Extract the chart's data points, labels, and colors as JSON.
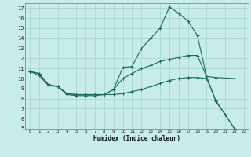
{
  "xlabel": "Humidex (Indice chaleur)",
  "bg_color": "#c8ece9",
  "grid_color": "#a8d8d4",
  "line_color": "#1a6b5a",
  "xlim": [
    -0.5,
    23.5
  ],
  "ylim": [
    5,
    17.5
  ],
  "yticks": [
    5,
    6,
    7,
    8,
    9,
    10,
    11,
    12,
    13,
    14,
    15,
    16,
    17
  ],
  "xticks": [
    0,
    1,
    2,
    3,
    4,
    5,
    6,
    7,
    8,
    9,
    10,
    11,
    12,
    13,
    14,
    15,
    16,
    17,
    18,
    19,
    20,
    21,
    22,
    23
  ],
  "series": [
    {
      "x": [
        0,
        1,
        2,
        3,
        4,
        5,
        6,
        7,
        8,
        9,
        10,
        11,
        12,
        13,
        14,
        15,
        16,
        17,
        18,
        19,
        20,
        21,
        22
      ],
      "y": [
        10.7,
        10.5,
        9.4,
        9.2,
        8.5,
        8.4,
        8.4,
        8.4,
        8.4,
        8.9,
        11.1,
        11.2,
        13.0,
        14.0,
        15.0,
        17.1,
        16.5,
        15.7,
        14.3,
        10.2,
        7.7,
        6.4,
        5.0
      ]
    },
    {
      "x": [
        0,
        1,
        2,
        3,
        4,
        5,
        6,
        7,
        8,
        9,
        10,
        11,
        12,
        13,
        14,
        15,
        16,
        17,
        18,
        19,
        20,
        22
      ],
      "y": [
        10.7,
        10.5,
        9.4,
        9.2,
        8.5,
        8.4,
        8.4,
        8.4,
        8.4,
        8.9,
        10.0,
        10.5,
        11.0,
        11.3,
        11.7,
        11.9,
        12.1,
        12.3,
        12.3,
        10.2,
        10.1,
        10.0
      ]
    },
    {
      "x": [
        0,
        1,
        2,
        3,
        4,
        5,
        6,
        7,
        8,
        9,
        10,
        11,
        12,
        13,
        14,
        15,
        16,
        17,
        18,
        19,
        20,
        21,
        22
      ],
      "y": [
        10.7,
        10.3,
        9.3,
        9.2,
        8.4,
        8.3,
        8.3,
        8.3,
        8.4,
        8.4,
        8.5,
        8.7,
        8.9,
        9.2,
        9.5,
        9.8,
        10.0,
        10.1,
        10.1,
        10.0,
        7.8,
        6.4,
        5.0
      ]
    }
  ]
}
